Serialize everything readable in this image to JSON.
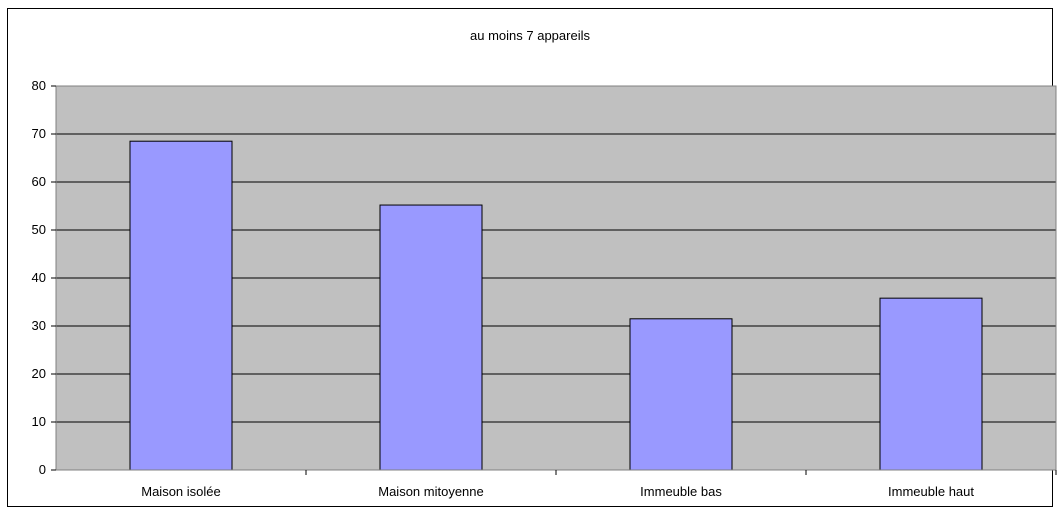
{
  "chart_data": {
    "type": "bar",
    "title": "au moins 7 appareils",
    "xlabel": "",
    "ylabel": "",
    "categories": [
      "Maison isolée",
      "Maison mitoyenne",
      "Immeuble bas",
      "Immeuble haut"
    ],
    "values": [
      68.5,
      55.2,
      31.5,
      35.8
    ],
    "ylim": [
      0,
      80
    ],
    "yticks": [
      "0",
      "10",
      "20",
      "30",
      "40",
      "50",
      "60",
      "70",
      "80"
    ],
    "grid": true,
    "legend": "none",
    "colors": {
      "bar_fill": "#9999ff",
      "plot_background": "#c0c0c0",
      "gridline": "#000000"
    }
  }
}
